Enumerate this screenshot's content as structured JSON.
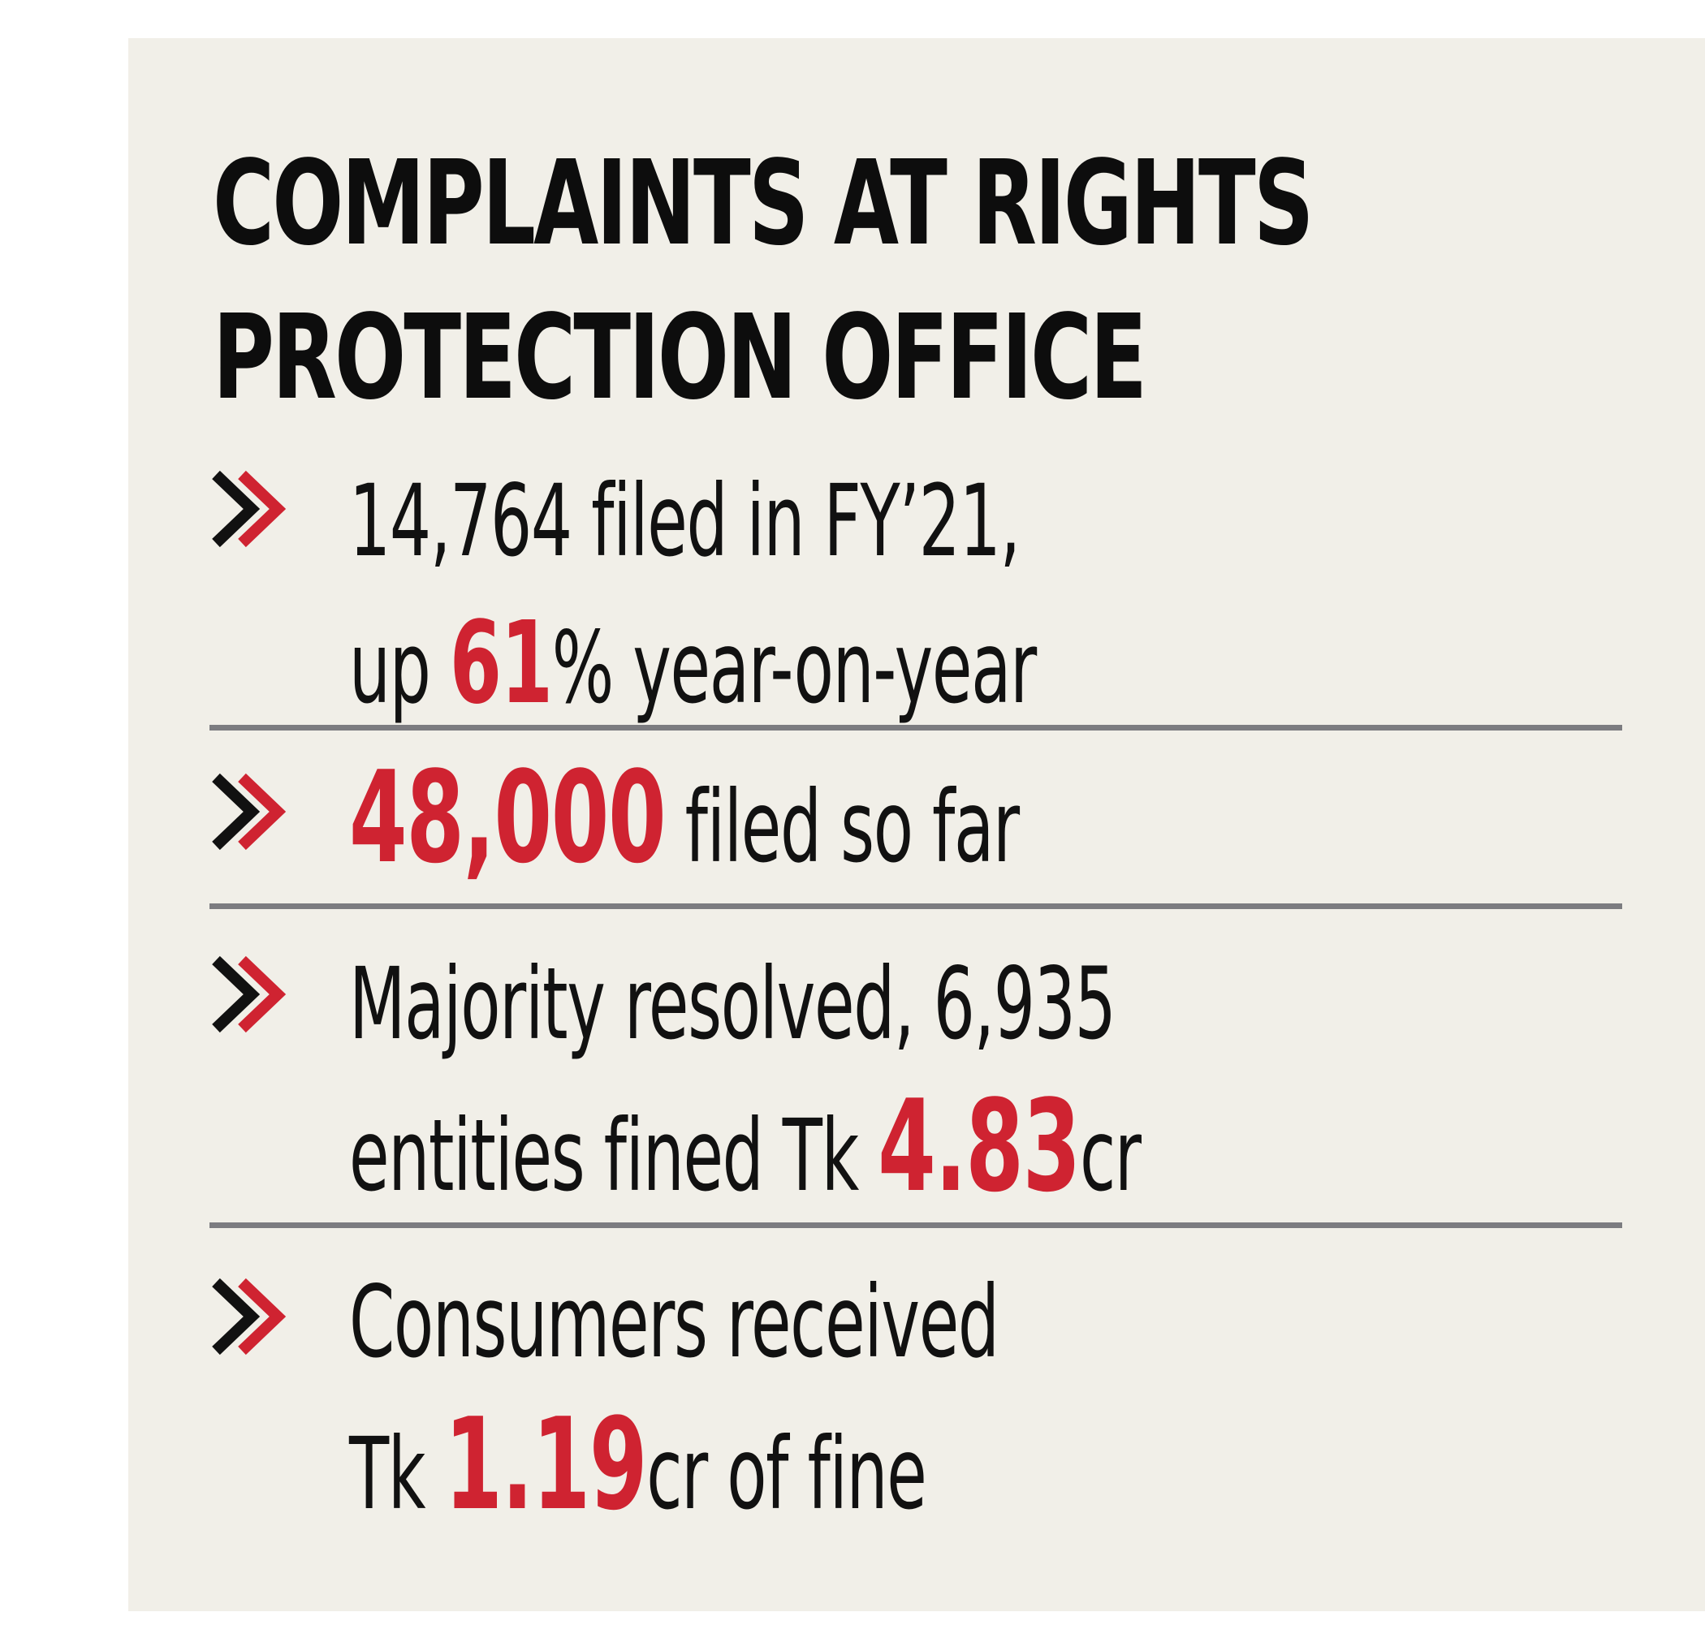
{
  "title": {
    "line1": "COMPLAINTS AT RIGHTS",
    "line2": "PROTECTION OFFICE"
  },
  "items": [
    {
      "line1": "14,764 filed in FY’21,",
      "line2_pre": "up ",
      "line2_highlight": "61",
      "line2_post": "% year-on-year"
    },
    {
      "highlight": "48,000",
      "post": " filed so far"
    },
    {
      "line1": "Majority resolved, 6,935",
      "line2_pre": "entities fined  Tk ",
      "line2_highlight": "4.83",
      "line2_post": "cr"
    },
    {
      "line1": "Consumers received",
      "line2_pre": "Tk ",
      "line2_highlight": "1.19",
      "line2_post": "cr of fine"
    }
  ],
  "colors": {
    "background": "#f1efe8",
    "accent_red": "#cf2331",
    "text_black": "#111111",
    "divider_gray": "#7c7c80"
  },
  "icons": {
    "bullet": "double-chevron-right-icon"
  }
}
